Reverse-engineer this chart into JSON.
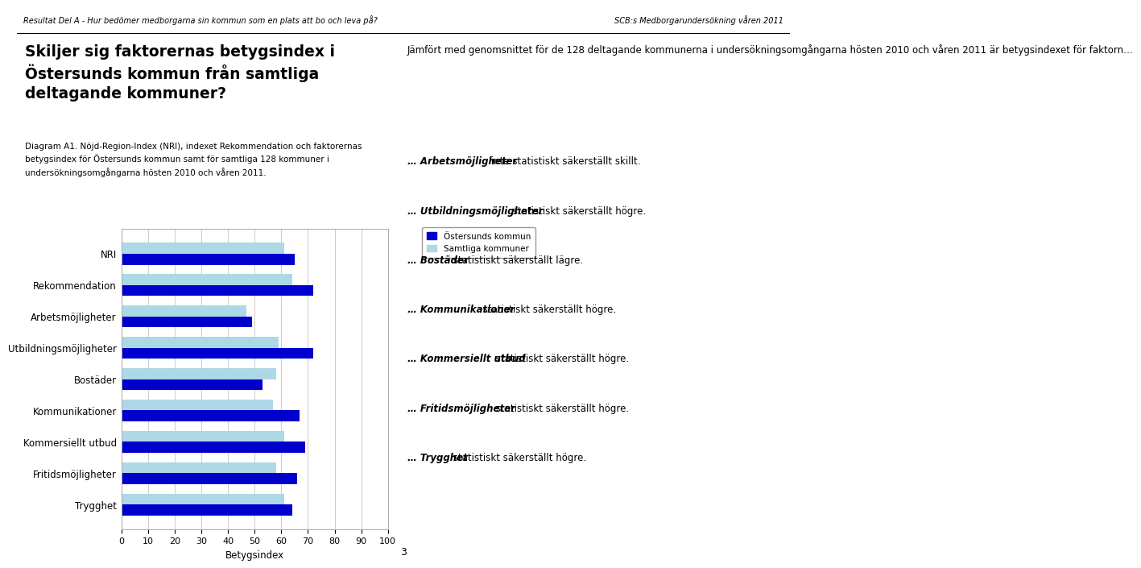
{
  "categories": [
    "NRI",
    "Rekommendation",
    "Arbetsmöjligheter",
    "Utbildningsmöjligheter",
    "Bostäder",
    "Kommunikationer",
    "Kommersiellt utbud",
    "Fritidsmöjligheter",
    "Trygghet"
  ],
  "ostersund": [
    65,
    72,
    49,
    72,
    53,
    67,
    69,
    66,
    64
  ],
  "samtliga": [
    61,
    64,
    47,
    59,
    58,
    57,
    61,
    58,
    61
  ],
  "color_ostersund": "#0000CD",
  "color_samtliga": "#ADD8E6",
  "legend_ostersund": "Östersunds kommun",
  "legend_samtliga": "Samtliga kommuner",
  "xlabel": "Betygsindex",
  "xlim": [
    0,
    100
  ],
  "xticks": [
    0,
    10,
    20,
    30,
    40,
    50,
    60,
    70,
    80,
    90,
    100
  ],
  "header_left": "Resultat Del A - Hur bedömer medborgarna sin kommun som en plats att bo och leva på?",
  "header_right": "SCB:s Medborgarundersökning våren 2011",
  "title_left": "Skiljer sig faktorernas betygsindex i\nÖstersunds kommun från samtliga\ndeltagande kommuner?",
  "diagram_label": "Diagram A1. Nöjd-Region-Index (NRI), indexet Rekommendation och faktorernas\nbetygsindex för Östersunds kommun samt för samtliga 128 kommuner i\nundersökningsomgångarna hösten 2010 och våren 2011.",
  "right_intro": "Jämfört med genomsnittet för de 128 deltagande kommunerna i undersökningsomgångarna hösten 2010 och våren 2011 är betygsindexet för faktorn…",
  "right_bullets": [
    {
      "bold": "… Arbetsmöjligheter",
      "normal": " inte statistiskt säkerställt skillt."
    },
    {
      "bold": "… Utbildningsmöjligheter",
      "normal": " statistiskt säkerställt högre."
    },
    {
      "bold": "… Bostäder",
      "normal": " statistiskt säkerställt lägre."
    },
    {
      "bold": "… Kommunikationer",
      "normal": " statistiskt säkerställt högre."
    },
    {
      "bold": "… Kommersiellt utbud",
      "normal": " statistiskt säkerställt högre."
    },
    {
      "bold": "… Fritidsmöjligheter",
      "normal": " statistiskt säkerställt högre."
    },
    {
      "bold": "… Trygghet",
      "normal": " statistiskt säkerställt högre."
    }
  ],
  "bar_height": 0.35,
  "background_color": "#FFFFFF",
  "grid_color": "#CCCCCC",
  "page_number": "3"
}
